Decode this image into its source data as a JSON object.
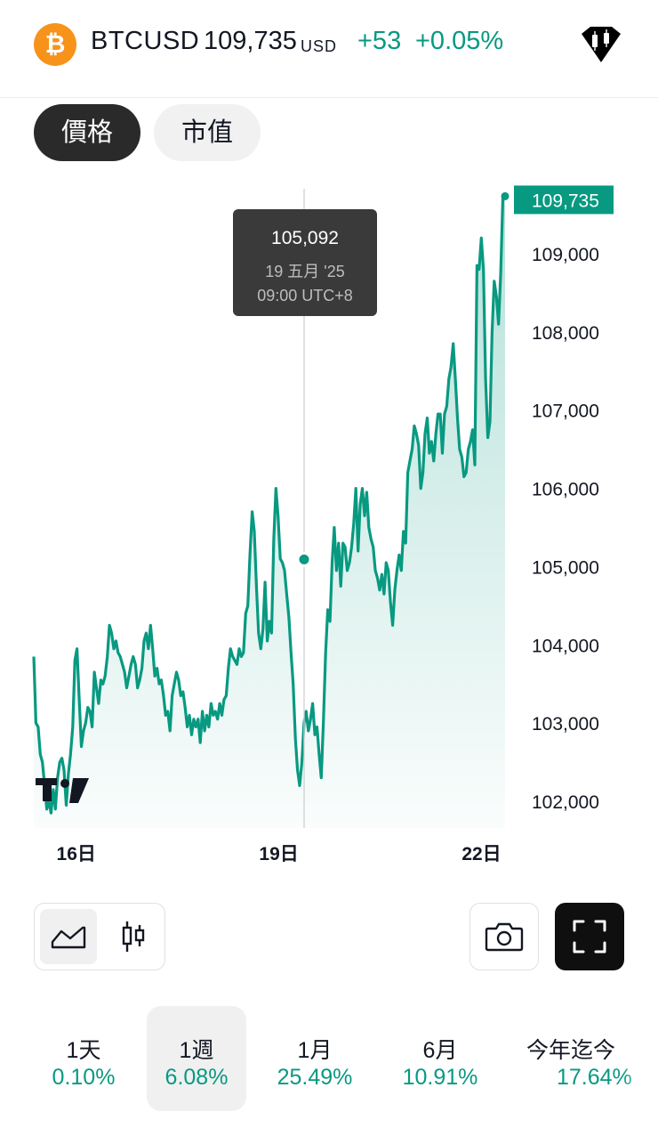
{
  "header": {
    "coin_icon": "bitcoin-icon",
    "coin_glyph": "₿",
    "symbol": "BTCUSD",
    "price": "109,735",
    "currency": "USD",
    "change": "+53",
    "change_pct": "+0.05%",
    "logo_icon": "tradingview-badge-icon"
  },
  "tabs": [
    {
      "label": "價格",
      "active": true
    },
    {
      "label": "市值",
      "active": false
    }
  ],
  "colors": {
    "up": "#089981",
    "dark": "#2a2a2a",
    "text": "#131722"
  },
  "chart_data": {
    "type": "area",
    "x_ticks": [
      "16日",
      "19日",
      "22日"
    ],
    "y_ticks": [
      "102,000",
      "103,000",
      "104,000",
      "105,000",
      "106,000",
      "107,000",
      "108,000",
      "109,000"
    ],
    "ylim": [
      101800,
      109900
    ],
    "last_value_label": "109,735",
    "last_value": 109735,
    "tooltip": {
      "value": "105,092",
      "date": "19 五月 '25",
      "time": "09:00 UTC+8"
    },
    "crosshair_value": 105092,
    "series": [
      {
        "values": [
          103850,
          103000,
          102950,
          102600,
          102500,
          102200,
          101900,
          102000,
          101850,
          102150,
          101900,
          102300,
          102500,
          102550,
          102400,
          101950,
          102350,
          102600,
          102950,
          103800,
          103950,
          103300,
          102700,
          102900,
          103000,
          103200,
          103150,
          102950,
          103650,
          103450,
          103250,
          103550,
          103500,
          103600,
          103850,
          104250,
          104150,
          103950,
          104050,
          103900,
          103850,
          103750,
          103650,
          103450,
          103600,
          103750,
          103850,
          103750,
          103450,
          103550,
          103700,
          104050,
          104150,
          103950,
          104250,
          103950,
          103600,
          103700,
          103500,
          103550,
          103350,
          103100,
          103150,
          102900,
          103350,
          103500,
          103650,
          103550,
          103350,
          103400,
          103200,
          102950,
          103100,
          102850,
          103050,
          102950,
          103050,
          102750,
          103150,
          102900,
          103100,
          102950,
          103250,
          103100,
          103150,
          103050,
          103250,
          103100,
          103300,
          103350,
          103700,
          103950,
          103850,
          103800,
          103750,
          103950,
          103850,
          103900,
          104400,
          104500,
          105150,
          105700,
          105450,
          104750,
          104150,
          103950,
          104200,
          104800,
          104050,
          104300,
          104150,
          105350,
          106000,
          105650,
          105100,
          105050,
          104950,
          104650,
          104350,
          103900,
          103500,
          102800,
          102400,
          102200,
          102500,
          103000,
          103150,
          102900,
          103050,
          103250,
          102850,
          102950,
          102600,
          102300,
          103050,
          103900,
          104450,
          104300,
          105050,
          105500,
          104950,
          105300,
          104750,
          105300,
          105250,
          104950,
          105050,
          105250,
          105550,
          106000,
          105200,
          105800,
          106000,
          105650,
          105950,
          105500,
          105350,
          105250,
          104950,
          104850,
          104700,
          104900,
          104650,
          105050,
          104950,
          104550,
          104250,
          104700,
          104950,
          105150,
          104950,
          105450,
          105300,
          106200,
          106350,
          106500,
          106800,
          106700,
          106550,
          106000,
          106200,
          106700,
          106900,
          106450,
          106600,
          106350,
          106700,
          106950,
          106950,
          106450,
          106950,
          107050,
          107400,
          107550,
          107850,
          107400,
          106900,
          106500,
          106400,
          106150,
          106200,
          106500,
          106600,
          106750,
          106300,
          108850,
          108800,
          109200,
          108800,
          107400,
          106650,
          106850,
          108000,
          108650,
          108450,
          108100,
          108750,
          109750,
          109750
        ]
      }
    ]
  },
  "tools": {
    "area_icon": "area-chart-icon",
    "candle_icon": "candlestick-icon",
    "camera_icon": "camera-icon",
    "fullscreen_icon": "fullscreen-icon"
  },
  "periods": [
    {
      "label": "1天",
      "value": "0.10%",
      "active": false
    },
    {
      "label": "1週",
      "value": "6.08%",
      "active": true
    },
    {
      "label": "1月",
      "value": "25.49%",
      "active": false
    },
    {
      "label": "6月",
      "value": "10.91%",
      "active": false
    },
    {
      "label": "今年迄今",
      "value": "17.64%",
      "active": false
    }
  ]
}
